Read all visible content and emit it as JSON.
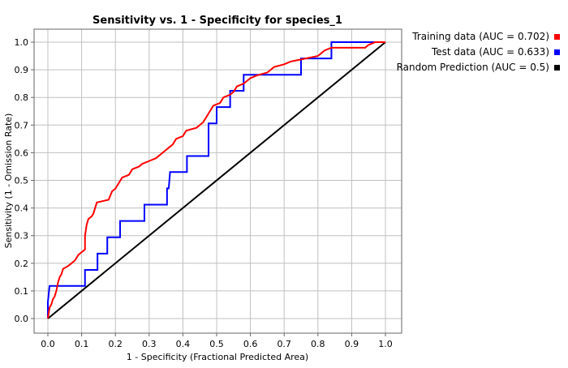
{
  "chart_data": {
    "type": "line",
    "title": "Sensitivity vs. 1 - Specificity for species_1",
    "xlabel": "1 - Specificity  (Fractional Predicted Area)",
    "ylabel": "Sensitivity  (1 - Omission Rate)",
    "xlim": [
      0,
      1
    ],
    "ylim": [
      0,
      1
    ],
    "x_ticks": [
      "0.0",
      "0.1",
      "0.2",
      "0.3",
      "0.4",
      "0.5",
      "0.6",
      "0.7",
      "0.8",
      "0.9",
      "1.0"
    ],
    "y_ticks": [
      "0.0",
      "0.1",
      "0.2",
      "0.3",
      "0.4",
      "0.5",
      "0.6",
      "0.7",
      "0.8",
      "0.9",
      "1.0"
    ],
    "grid": true,
    "legend_position": "top-right",
    "series": [
      {
        "name": "Training data (AUC = 0.702)",
        "color": "#ff0000",
        "points": [
          [
            0.0,
            0.0
          ],
          [
            0.005,
            0.04
          ],
          [
            0.01,
            0.05
          ],
          [
            0.015,
            0.07
          ],
          [
            0.02,
            0.08
          ],
          [
            0.025,
            0.1
          ],
          [
            0.03,
            0.13
          ],
          [
            0.035,
            0.15
          ],
          [
            0.04,
            0.16
          ],
          [
            0.045,
            0.18
          ],
          [
            0.06,
            0.19
          ],
          [
            0.07,
            0.2
          ],
          [
            0.08,
            0.21
          ],
          [
            0.085,
            0.22
          ],
          [
            0.09,
            0.23
          ],
          [
            0.1,
            0.24
          ],
          [
            0.11,
            0.25
          ],
          [
            0.11,
            0.3
          ],
          [
            0.115,
            0.34
          ],
          [
            0.12,
            0.36
          ],
          [
            0.13,
            0.37
          ],
          [
            0.135,
            0.38
          ],
          [
            0.14,
            0.4
          ],
          [
            0.145,
            0.42
          ],
          [
            0.18,
            0.43
          ],
          [
            0.19,
            0.46
          ],
          [
            0.2,
            0.47
          ],
          [
            0.21,
            0.49
          ],
          [
            0.22,
            0.51
          ],
          [
            0.24,
            0.52
          ],
          [
            0.25,
            0.54
          ],
          [
            0.27,
            0.55
          ],
          [
            0.28,
            0.56
          ],
          [
            0.3,
            0.57
          ],
          [
            0.32,
            0.58
          ],
          [
            0.33,
            0.59
          ],
          [
            0.35,
            0.61
          ],
          [
            0.36,
            0.62
          ],
          [
            0.37,
            0.63
          ],
          [
            0.38,
            0.65
          ],
          [
            0.4,
            0.66
          ],
          [
            0.41,
            0.68
          ],
          [
            0.44,
            0.69
          ],
          [
            0.46,
            0.71
          ],
          [
            0.47,
            0.73
          ],
          [
            0.48,
            0.75
          ],
          [
            0.49,
            0.77
          ],
          [
            0.51,
            0.78
          ],
          [
            0.52,
            0.8
          ],
          [
            0.54,
            0.81
          ],
          [
            0.55,
            0.82
          ],
          [
            0.56,
            0.84
          ],
          [
            0.58,
            0.85
          ],
          [
            0.59,
            0.86
          ],
          [
            0.6,
            0.87
          ],
          [
            0.62,
            0.88
          ],
          [
            0.65,
            0.89
          ],
          [
            0.66,
            0.9
          ],
          [
            0.67,
            0.91
          ],
          [
            0.7,
            0.92
          ],
          [
            0.72,
            0.93
          ],
          [
            0.76,
            0.94
          ],
          [
            0.8,
            0.95
          ],
          [
            0.82,
            0.97
          ],
          [
            0.84,
            0.98
          ],
          [
            0.94,
            0.98
          ],
          [
            0.95,
            0.99
          ],
          [
            0.97,
            1.0
          ],
          [
            1.0,
            1.0
          ]
        ]
      },
      {
        "name": "Test data (AUC = 0.633)",
        "color": "#0000ff",
        "points": [
          [
            0.0,
            0.0
          ],
          [
            0.0,
            0.06
          ],
          [
            0.005,
            0.118
          ],
          [
            0.11,
            0.118
          ],
          [
            0.11,
            0.176
          ],
          [
            0.147,
            0.176
          ],
          [
            0.147,
            0.235
          ],
          [
            0.176,
            0.235
          ],
          [
            0.176,
            0.294
          ],
          [
            0.214,
            0.294
          ],
          [
            0.214,
            0.353
          ],
          [
            0.286,
            0.353
          ],
          [
            0.286,
            0.412
          ],
          [
            0.353,
            0.412
          ],
          [
            0.353,
            0.471
          ],
          [
            0.358,
            0.471
          ],
          [
            0.362,
            0.53
          ],
          [
            0.412,
            0.53
          ],
          [
            0.412,
            0.588
          ],
          [
            0.476,
            0.588
          ],
          [
            0.476,
            0.706
          ],
          [
            0.5,
            0.706
          ],
          [
            0.5,
            0.765
          ],
          [
            0.54,
            0.765
          ],
          [
            0.54,
            0.824
          ],
          [
            0.58,
            0.824
          ],
          [
            0.58,
            0.882
          ],
          [
            0.75,
            0.882
          ],
          [
            0.75,
            0.941
          ],
          [
            0.84,
            0.941
          ],
          [
            0.84,
            1.0
          ],
          [
            1.0,
            1.0
          ]
        ]
      },
      {
        "name": "Random Prediction (AUC = 0.5)",
        "color": "#000000",
        "points": [
          [
            0.0,
            0.0
          ],
          [
            1.0,
            1.0
          ]
        ]
      }
    ]
  }
}
